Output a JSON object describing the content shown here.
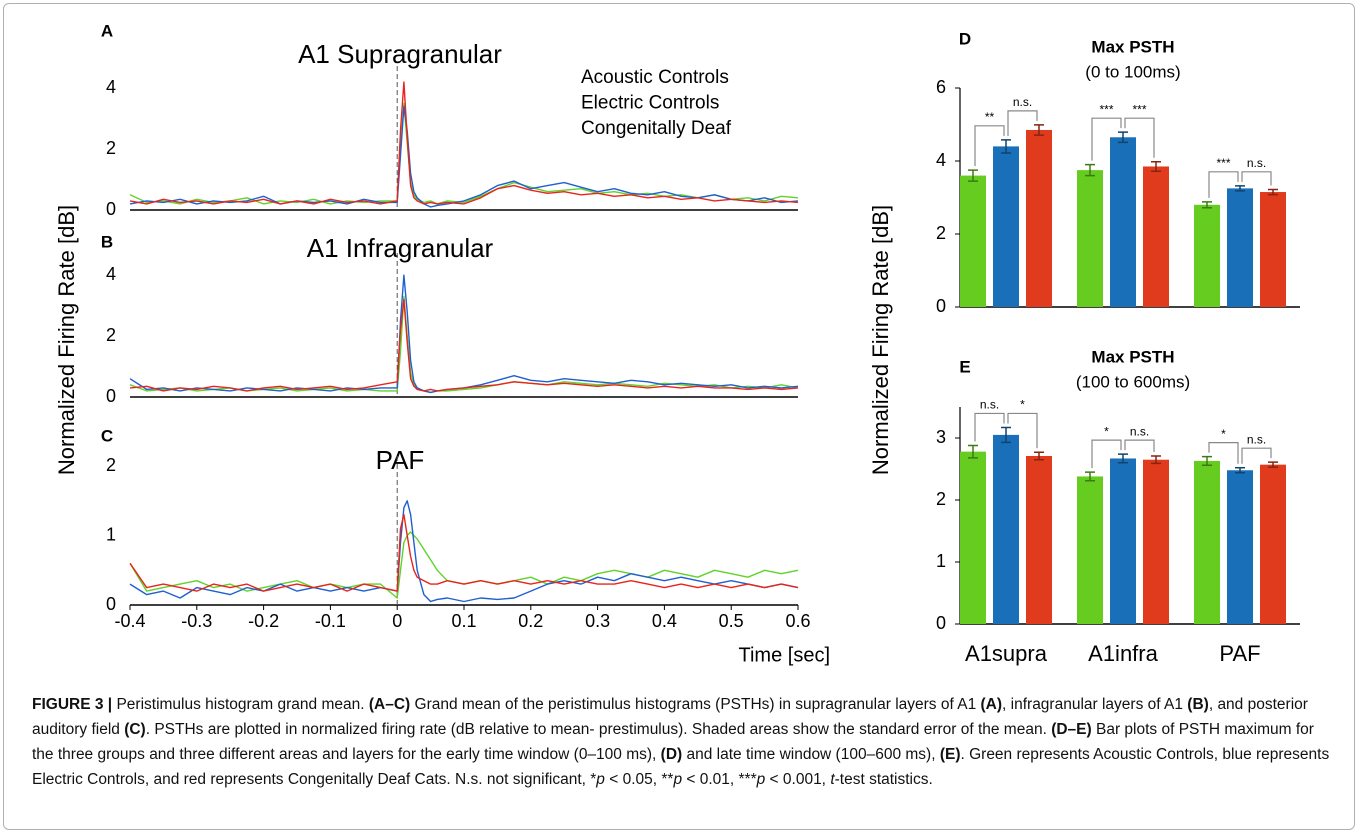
{
  "chart_data": [
    {
      "type": "line",
      "panel": "A",
      "title": "A1 Supragranular",
      "ylabel": "Normalized Firing Rate [dB]",
      "legend": "top-right",
      "xlim": [
        -0.4,
        0.6
      ],
      "ylim": [
        0,
        4.4
      ],
      "yticks": [
        0,
        2,
        4
      ],
      "stimulus_onset": 0,
      "x": [
        -0.4,
        -0.375,
        -0.35,
        -0.325,
        -0.3,
        -0.275,
        -0.25,
        -0.225,
        -0.2,
        -0.175,
        -0.15,
        -0.125,
        -0.1,
        -0.075,
        -0.05,
        -0.025,
        0,
        0.005,
        0.01,
        0.015,
        0.02,
        0.025,
        0.03,
        0.04,
        0.05,
        0.06,
        0.075,
        0.1,
        0.125,
        0.15,
        0.175,
        0.2,
        0.225,
        0.25,
        0.275,
        0.3,
        0.325,
        0.35,
        0.375,
        0.4,
        0.425,
        0.45,
        0.475,
        0.5,
        0.525,
        0.55,
        0.575,
        0.6
      ],
      "series": [
        {
          "name": "Acoustic Controls",
          "color": "#5fd32a",
          "values": [
            0.5,
            0.25,
            0.3,
            0.2,
            0.35,
            0.25,
            0.3,
            0.4,
            0.2,
            0.3,
            0.25,
            0.35,
            0.2,
            0.3,
            0.25,
            0.3,
            0.3,
            2.0,
            3.5,
            2.2,
            0.9,
            0.5,
            0.35,
            0.25,
            0.3,
            0.2,
            0.3,
            0.25,
            0.45,
            0.7,
            0.9,
            0.75,
            0.6,
            0.65,
            0.7,
            0.55,
            0.6,
            0.5,
            0.55,
            0.45,
            0.5,
            0.4,
            0.5,
            0.35,
            0.4,
            0.3,
            0.45,
            0.4
          ]
        },
        {
          "name": "Electric Controls",
          "color": "#1f5fd0",
          "values": [
            0.2,
            0.3,
            0.25,
            0.35,
            0.2,
            0.3,
            0.25,
            0.3,
            0.45,
            0.2,
            0.3,
            0.25,
            0.3,
            0.2,
            0.35,
            0.25,
            0.25,
            1.8,
            3.4,
            2.6,
            1.2,
            0.6,
            0.4,
            0.2,
            0.1,
            0.15,
            0.2,
            0.3,
            0.5,
            0.8,
            0.95,
            0.7,
            0.8,
            0.9,
            0.75,
            0.6,
            0.7,
            0.55,
            0.5,
            0.6,
            0.45,
            0.4,
            0.5,
            0.35,
            0.3,
            0.4,
            0.25,
            0.3
          ]
        },
        {
          "name": "Congenitally Deaf",
          "color": "#e8251b",
          "values": [
            0.3,
            0.2,
            0.35,
            0.25,
            0.3,
            0.2,
            0.3,
            0.25,
            0.35,
            0.2,
            0.3,
            0.2,
            0.35,
            0.25,
            0.3,
            0.2,
            0.3,
            2.6,
            4.2,
            2.4,
            0.8,
            0.4,
            0.3,
            0.2,
            0.25,
            0.2,
            0.25,
            0.2,
            0.4,
            0.7,
            0.8,
            0.65,
            0.55,
            0.6,
            0.5,
            0.55,
            0.45,
            0.5,
            0.4,
            0.45,
            0.35,
            0.4,
            0.3,
            0.35,
            0.3,
            0.25,
            0.3,
            0.25
          ]
        }
      ]
    },
    {
      "type": "line",
      "panel": "B",
      "title": "A1 Infragranular",
      "xlim": [
        -0.4,
        0.6
      ],
      "ylim": [
        0,
        4.4
      ],
      "yticks": [
        0,
        2,
        4
      ],
      "stimulus_onset": 0,
      "x": [
        -0.4,
        -0.375,
        -0.35,
        -0.325,
        -0.3,
        -0.275,
        -0.25,
        -0.225,
        -0.2,
        -0.175,
        -0.15,
        -0.125,
        -0.1,
        -0.075,
        -0.05,
        -0.025,
        0,
        0.005,
        0.01,
        0.015,
        0.02,
        0.025,
        0.03,
        0.04,
        0.05,
        0.06,
        0.075,
        0.1,
        0.125,
        0.15,
        0.175,
        0.2,
        0.225,
        0.25,
        0.275,
        0.3,
        0.325,
        0.35,
        0.375,
        0.4,
        0.425,
        0.45,
        0.475,
        0.5,
        0.525,
        0.55,
        0.575,
        0.6
      ],
      "series": [
        {
          "name": "Acoustic Controls",
          "color": "#5fd32a",
          "values": [
            0.4,
            0.2,
            0.25,
            0.3,
            0.2,
            0.25,
            0.3,
            0.2,
            0.25,
            0.3,
            0.2,
            0.25,
            0.3,
            0.2,
            0.25,
            0.2,
            0.2,
            1.5,
            3.3,
            2.0,
            0.8,
            0.4,
            0.3,
            0.2,
            0.15,
            0.2,
            0.2,
            0.25,
            0.3,
            0.4,
            0.5,
            0.45,
            0.4,
            0.5,
            0.45,
            0.4,
            0.45,
            0.4,
            0.35,
            0.45,
            0.4,
            0.35,
            0.4,
            0.3,
            0.35,
            0.3,
            0.4,
            0.3
          ]
        },
        {
          "name": "Electric Controls",
          "color": "#1f5fd0",
          "values": [
            0.6,
            0.25,
            0.3,
            0.2,
            0.3,
            0.25,
            0.2,
            0.3,
            0.25,
            0.2,
            0.3,
            0.25,
            0.2,
            0.3,
            0.25,
            0.3,
            0.3,
            2.5,
            4.0,
            2.8,
            1.2,
            0.5,
            0.3,
            0.2,
            0.15,
            0.2,
            0.25,
            0.3,
            0.4,
            0.55,
            0.7,
            0.55,
            0.5,
            0.6,
            0.55,
            0.5,
            0.45,
            0.55,
            0.5,
            0.4,
            0.45,
            0.4,
            0.35,
            0.4,
            0.3,
            0.35,
            0.3,
            0.35
          ]
        },
        {
          "name": "Congenitally Deaf",
          "color": "#e8251b",
          "values": [
            0.3,
            0.35,
            0.2,
            0.3,
            0.25,
            0.35,
            0.3,
            0.2,
            0.3,
            0.35,
            0.25,
            0.3,
            0.35,
            0.25,
            0.3,
            0.4,
            0.5,
            2.2,
            3.2,
            1.8,
            0.6,
            0.35,
            0.25,
            0.2,
            0.25,
            0.2,
            0.25,
            0.3,
            0.35,
            0.4,
            0.5,
            0.45,
            0.4,
            0.45,
            0.4,
            0.35,
            0.4,
            0.35,
            0.3,
            0.35,
            0.3,
            0.35,
            0.3,
            0.3,
            0.25,
            0.3,
            0.25,
            0.3
          ]
        }
      ]
    },
    {
      "type": "line",
      "panel": "C",
      "title": "PAF",
      "xlabel": "Time [sec]",
      "xlim": [
        -0.4,
        0.6
      ],
      "xticks": [
        -0.4,
        -0.3,
        -0.2,
        -0.1,
        0,
        0.1,
        0.2,
        0.3,
        0.4,
        0.5,
        0.6
      ],
      "ylim": [
        0,
        2
      ],
      "yticks": [
        0,
        1,
        2
      ],
      "stimulus_onset": 0,
      "x": [
        -0.4,
        -0.375,
        -0.35,
        -0.325,
        -0.3,
        -0.275,
        -0.25,
        -0.225,
        -0.2,
        -0.175,
        -0.15,
        -0.125,
        -0.1,
        -0.075,
        -0.05,
        -0.025,
        0,
        0.005,
        0.01,
        0.015,
        0.02,
        0.025,
        0.03,
        0.04,
        0.05,
        0.06,
        0.075,
        0.1,
        0.125,
        0.15,
        0.175,
        0.2,
        0.225,
        0.25,
        0.275,
        0.3,
        0.325,
        0.35,
        0.375,
        0.4,
        0.425,
        0.45,
        0.475,
        0.5,
        0.525,
        0.55,
        0.575,
        0.6
      ],
      "series": [
        {
          "name": "Acoustic Controls",
          "color": "#5fd32a",
          "values": [
            0.6,
            0.2,
            0.25,
            0.3,
            0.35,
            0.25,
            0.3,
            0.2,
            0.25,
            0.3,
            0.35,
            0.25,
            0.3,
            0.25,
            0.3,
            0.3,
            0.1,
            0.5,
            0.9,
            1.0,
            1.05,
            1.0,
            0.95,
            0.8,
            0.65,
            0.5,
            0.35,
            0.3,
            0.35,
            0.3,
            0.35,
            0.4,
            0.3,
            0.4,
            0.35,
            0.45,
            0.5,
            0.45,
            0.4,
            0.5,
            0.45,
            0.4,
            0.5,
            0.45,
            0.4,
            0.5,
            0.45,
            0.5
          ]
        },
        {
          "name": "Electric Controls",
          "color": "#1f5fd0",
          "values": [
            0.3,
            0.15,
            0.2,
            0.1,
            0.25,
            0.2,
            0.15,
            0.25,
            0.2,
            0.3,
            0.2,
            0.25,
            0.2,
            0.25,
            0.2,
            0.25,
            0.2,
            0.9,
            1.4,
            1.5,
            1.3,
            0.9,
            0.5,
            0.15,
            0.05,
            0.08,
            0.1,
            0.05,
            0.1,
            0.08,
            0.1,
            0.2,
            0.3,
            0.35,
            0.3,
            0.4,
            0.35,
            0.45,
            0.4,
            0.35,
            0.4,
            0.35,
            0.3,
            0.35,
            0.3,
            0.25,
            0.3,
            0.25
          ]
        },
        {
          "name": "Congenitally Deaf",
          "color": "#e8251b",
          "values": [
            0.6,
            0.25,
            0.3,
            0.25,
            0.2,
            0.3,
            0.25,
            0.3,
            0.2,
            0.25,
            0.3,
            0.25,
            0.3,
            0.2,
            0.3,
            0.25,
            0.2,
            1.1,
            1.3,
            1.0,
            0.7,
            0.5,
            0.4,
            0.35,
            0.3,
            0.3,
            0.35,
            0.3,
            0.35,
            0.3,
            0.35,
            0.3,
            0.35,
            0.3,
            0.35,
            0.3,
            0.3,
            0.35,
            0.3,
            0.25,
            0.3,
            0.25,
            0.3,
            0.25,
            0.3,
            0.25,
            0.3,
            0.25
          ]
        }
      ]
    },
    {
      "type": "bar",
      "panel": "D",
      "title": "Max PSTH",
      "subtitle": "(0 to 100ms)",
      "ylabel": "Normalized Firing Rate [dB]",
      "categories": [
        null,
        null,
        null
      ],
      "ylim": [
        0,
        6
      ],
      "yticks": [
        0,
        2,
        4,
        6
      ],
      "series": [
        {
          "name": "Acoustic Controls",
          "color": "#66cc1f",
          "values": [
            3.6,
            3.75,
            2.8
          ],
          "errors": [
            0.15,
            0.15,
            0.08
          ]
        },
        {
          "name": "Electric Controls",
          "color": "#1a70b8",
          "values": [
            4.4,
            4.65,
            3.25
          ],
          "errors": [
            0.18,
            0.14,
            0.07
          ]
        },
        {
          "name": "Congenitally Deaf",
          "color": "#e03b1c",
          "values": [
            4.85,
            3.85,
            3.15
          ],
          "errors": [
            0.14,
            0.13,
            0.07
          ]
        }
      ],
      "significance": [
        [
          "**",
          "n.s."
        ],
        [
          "***",
          "***"
        ],
        [
          "***",
          "n.s."
        ]
      ]
    },
    {
      "type": "bar",
      "panel": "E",
      "title": "Max PSTH",
      "subtitle": "(100 to 600ms)",
      "categories": [
        "A1supra",
        "A1infra",
        "PAF"
      ],
      "ylim": [
        0,
        3.5
      ],
      "yticks": [
        0,
        1,
        2,
        3
      ],
      "series": [
        {
          "name": "Acoustic Controls",
          "color": "#66cc1f",
          "values": [
            2.78,
            2.38,
            2.63
          ],
          "errors": [
            0.1,
            0.07,
            0.07
          ]
        },
        {
          "name": "Electric Controls",
          "color": "#1a70b8",
          "values": [
            3.05,
            2.67,
            2.48
          ],
          "errors": [
            0.12,
            0.07,
            0.04
          ]
        },
        {
          "name": "Congenitally Deaf",
          "color": "#e03b1c",
          "values": [
            2.71,
            2.65,
            2.57
          ],
          "errors": [
            0.06,
            0.06,
            0.04
          ]
        }
      ],
      "significance": [
        [
          "n.s.",
          "*"
        ],
        [
          "*",
          "n.s."
        ],
        [
          "*",
          "n.s."
        ]
      ]
    }
  ],
  "caption": [
    {
      "text": "FIGURE 3 |",
      "style": "bold"
    },
    {
      "text": " Peristimulus histogram grand mean. ",
      "style": "normal"
    },
    {
      "text": "(A–C)",
      "style": "bold"
    },
    {
      "text": " Grand mean of the peristimulus histograms (PSTHs) in supragranular layers of A1 ",
      "style": "normal"
    },
    {
      "text": "(A)",
      "style": "bold"
    },
    {
      "text": ", infragranular layers of A1 ",
      "style": "normal"
    },
    {
      "text": "(B)",
      "style": "bold"
    },
    {
      "text": ", and posterior auditory field ",
      "style": "normal"
    },
    {
      "text": "(C)",
      "style": "bold"
    },
    {
      "text": ". PSTHs are plotted in normalized firing rate (dB relative to mean- prestimulus). Shaded areas show the standard error of the mean. ",
      "style": "normal"
    },
    {
      "text": "(D–E)",
      "style": "bold"
    },
    {
      "text": " Bar plots of PSTH maximum for the three groups and three different areas and layers for the early time window (0–100 ms), ",
      "style": "normal"
    },
    {
      "text": "(D)",
      "style": "bold"
    },
    {
      "text": " and late time window (100–600 ms), ",
      "style": "normal"
    },
    {
      "text": "(E)",
      "style": "bold"
    },
    {
      "text": ". Green represents Acoustic Controls, blue represents Electric Controls, and red represents Congenitally Deaf Cats. N.s. not significant, *",
      "style": "normal"
    },
    {
      "text": "p",
      "style": "italic"
    },
    {
      "text": " < 0.05, **",
      "style": "normal"
    },
    {
      "text": "p",
      "style": "italic"
    },
    {
      "text": " < 0.01, ***",
      "style": "normal"
    },
    {
      "text": "p",
      "style": "italic"
    },
    {
      "text": " < 0.001, ",
      "style": "normal"
    },
    {
      "text": "t",
      "style": "italic"
    },
    {
      "text": "-test statistics.",
      "style": "normal"
    }
  ]
}
